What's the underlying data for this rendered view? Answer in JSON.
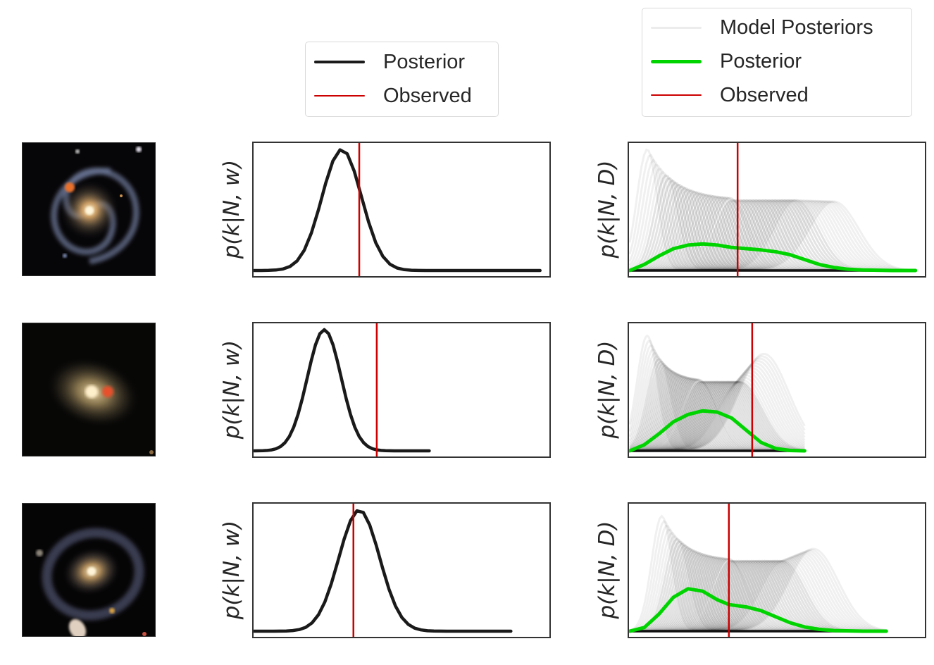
{
  "legends": {
    "single": {
      "items": [
        {
          "label": "Posterior",
          "color": "#1a1a1a",
          "kind": "thick"
        },
        {
          "label": "Observed",
          "color": "#cc0000",
          "kind": "thin"
        }
      ]
    },
    "ensemble": {
      "items": [
        {
          "label": "Model Posteriors",
          "color": "#e8e8e8",
          "kind": "faint"
        },
        {
          "label": "Posterior",
          "color": "#00d400",
          "kind": "thick"
        },
        {
          "label": "Observed",
          "color": "#cc0000",
          "kind": "thin"
        }
      ]
    }
  },
  "colors": {
    "posterior_single": "#1a1a1a",
    "posterior_ensemble": "#00d400",
    "observed": "#cc0000",
    "model_posteriors": "#000000",
    "axes": "#333333"
  },
  "ylabels": {
    "single": "p(k|N, w)",
    "ensemble": "p(k|N, D)"
  },
  "chart_data": [
    {
      "type": "line",
      "row": 0,
      "column": "single",
      "ylabel": "p(k|N, w)",
      "xlim": [
        0,
        1
      ],
      "ylim": [
        0,
        1.05
      ],
      "x_end": 0.98,
      "series": [
        {
          "name": "Posterior",
          "mean": 0.3,
          "sd": 0.068,
          "peak": 1.0
        }
      ],
      "observed": 0.36
    },
    {
      "type": "line",
      "row": 0,
      "column": "ensemble",
      "ylabel": "p(k|N, D)",
      "xlim": [
        0,
        1
      ],
      "ylim": [
        0,
        1.05
      ],
      "x_end": 0.98,
      "model_posteriors": {
        "count": 60,
        "first_mean": 0.06,
        "last_mean": 0.7,
        "peak_left": 1.0,
        "peak_mid": 0.58,
        "peak_right": 0.57
      },
      "series": [
        {
          "name": "Posterior",
          "points": [
            [
              0,
              0.0
            ],
            [
              0.05,
              0.05
            ],
            [
              0.1,
              0.12
            ],
            [
              0.15,
              0.18
            ],
            [
              0.2,
              0.21
            ],
            [
              0.25,
              0.22
            ],
            [
              0.3,
              0.21
            ],
            [
              0.35,
              0.19
            ],
            [
              0.4,
              0.18
            ],
            [
              0.45,
              0.17
            ],
            [
              0.5,
              0.155
            ],
            [
              0.55,
              0.13
            ],
            [
              0.6,
              0.09
            ],
            [
              0.65,
              0.05
            ],
            [
              0.7,
              0.025
            ],
            [
              0.75,
              0.01
            ],
            [
              0.8,
              0.004
            ],
            [
              0.9,
              0.0
            ],
            [
              0.98,
              0.0
            ]
          ]
        }
      ],
      "observed": 0.37
    },
    {
      "type": "line",
      "row": 1,
      "column": "single",
      "ylabel": "p(k|N, w)",
      "xlim": [
        0,
        1
      ],
      "ylim": [
        0,
        1.05
      ],
      "x_end": 0.6,
      "series": [
        {
          "name": "Posterior",
          "mean": 0.24,
          "sd": 0.058,
          "peak": 1.0
        }
      ],
      "observed": 0.42
    },
    {
      "type": "line",
      "row": 1,
      "column": "ensemble",
      "ylabel": "p(k|N, D)",
      "xlim": [
        0,
        1
      ],
      "ylim": [
        0,
        1.05
      ],
      "x_end": 0.6,
      "model_posteriors": {
        "count": 60,
        "first_mean": 0.06,
        "last_mean": 0.46,
        "peak_left": 0.95,
        "peak_mid": 0.57,
        "peak_right": 0.8
      },
      "series": [
        {
          "name": "Posterior",
          "points": [
            [
              0,
              0.0
            ],
            [
              0.05,
              0.05
            ],
            [
              0.1,
              0.14
            ],
            [
              0.15,
              0.24
            ],
            [
              0.2,
              0.3
            ],
            [
              0.25,
              0.33
            ],
            [
              0.3,
              0.32
            ],
            [
              0.35,
              0.27
            ],
            [
              0.4,
              0.17
            ],
            [
              0.45,
              0.07
            ],
            [
              0.5,
              0.02
            ],
            [
              0.55,
              0.003
            ],
            [
              0.6,
              0.0
            ]
          ]
        }
      ],
      "observed": 0.42
    },
    {
      "type": "line",
      "row": 2,
      "column": "single",
      "ylabel": "p(k|N, w)",
      "xlim": [
        0,
        1
      ],
      "ylim": [
        0,
        1.05
      ],
      "x_end": 0.88,
      "series": [
        {
          "name": "Posterior",
          "mean": 0.36,
          "sd": 0.07,
          "peak": 1.0
        }
      ],
      "observed": 0.34
    },
    {
      "type": "line",
      "row": 2,
      "column": "ensemble",
      "ylabel": "p(k|N, D)",
      "xlim": [
        0,
        1
      ],
      "ylim": [
        0,
        1.05
      ],
      "x_end": 0.88,
      "model_posteriors": {
        "count": 60,
        "first_mean": 0.11,
        "last_mean": 0.63,
        "peak_left": 0.95,
        "peak_mid": 0.58,
        "peak_right": 0.68
      },
      "series": [
        {
          "name": "Posterior",
          "points": [
            [
              0,
              0.0
            ],
            [
              0.05,
              0.03
            ],
            [
              0.1,
              0.14
            ],
            [
              0.15,
              0.28
            ],
            [
              0.2,
              0.35
            ],
            [
              0.25,
              0.33
            ],
            [
              0.3,
              0.26
            ],
            [
              0.34,
              0.22
            ],
            [
              0.4,
              0.2
            ],
            [
              0.45,
              0.17
            ],
            [
              0.5,
              0.12
            ],
            [
              0.55,
              0.07
            ],
            [
              0.6,
              0.035
            ],
            [
              0.65,
              0.015
            ],
            [
              0.7,
              0.005
            ],
            [
              0.8,
              0.0
            ],
            [
              0.88,
              0.0
            ]
          ]
        }
      ],
      "observed": 0.34
    }
  ]
}
